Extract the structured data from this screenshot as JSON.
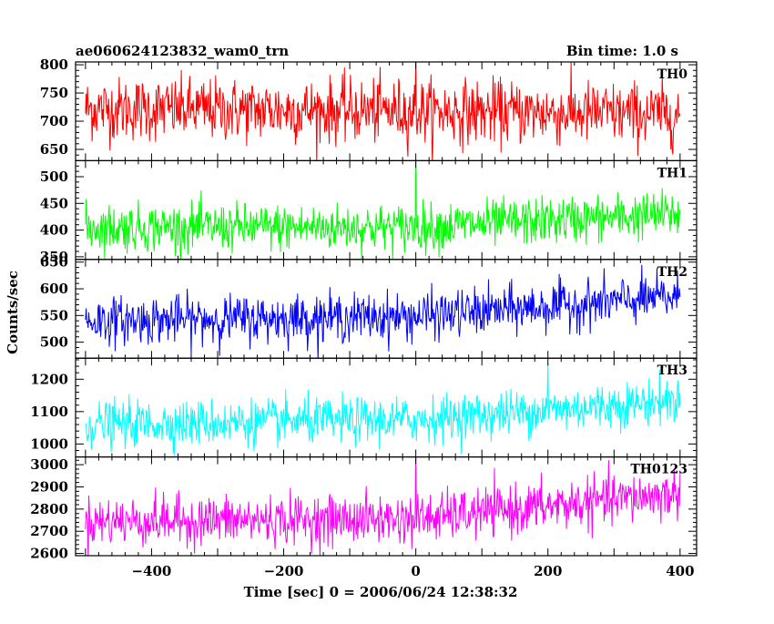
{
  "header": {
    "left": "ae060624123832_wam0_trn",
    "right": "Bin time: 1.0 s"
  },
  "chart_data": {
    "type": "line",
    "title": "ae060624123832_wam0_trn",
    "subtitle": "Bin time: 1.0 s",
    "xlabel": "Time [sec] 0 = 2006/06/24 12:38:32",
    "ylabel": "Counts/sec",
    "xlim": [
      -515,
      425
    ],
    "x_ticks": [
      -400,
      -200,
      0,
      200,
      400
    ],
    "x_tick_labels": [
      "−400",
      "−200",
      "0",
      "200",
      "400"
    ],
    "x_range_data": [
      -500,
      400
    ],
    "bin_time": 1.0,
    "grid": false,
    "panels": [
      {
        "name": "TH0",
        "color": "#ff0000",
        "ylim": [
          630,
          805
        ],
        "y_ticks": [
          650,
          700,
          750,
          800
        ],
        "trend": [
          {
            "x": -500,
            "y": 722
          },
          {
            "x": 0,
            "y": 718
          },
          {
            "x": 400,
            "y": 712
          }
        ],
        "noise_sd": 28,
        "spikes": [
          {
            "x": 0,
            "y": 810
          }
        ]
      },
      {
        "name": "TH1",
        "color": "#00ff00",
        "ylim": [
          345,
          530
        ],
        "y_ticks": [
          350,
          400,
          450,
          500
        ],
        "trend": [
          {
            "x": -500,
            "y": 405
          },
          {
            "x": 0,
            "y": 405
          },
          {
            "x": 400,
            "y": 430
          }
        ],
        "noise_sd": 22,
        "spikes": [
          {
            "x": 0,
            "y": 535
          }
        ]
      },
      {
        "name": "TH2",
        "color": "#0000ff",
        "ylim": [
          470,
          655
        ],
        "y_ticks": [
          500,
          550,
          600,
          650
        ],
        "trend": [
          {
            "x": -500,
            "y": 540
          },
          {
            "x": 0,
            "y": 548
          },
          {
            "x": 400,
            "y": 585
          }
        ],
        "noise_sd": 22,
        "spikes": []
      },
      {
        "name": "TH3",
        "color": "#00ffff",
        "ylim": [
          960,
          1265
        ],
        "y_ticks": [
          1000,
          1100,
          1200
        ],
        "trend": [
          {
            "x": -500,
            "y": 1060
          },
          {
            "x": 0,
            "y": 1075
          },
          {
            "x": 400,
            "y": 1135
          }
        ],
        "noise_sd": 35,
        "spikes": [
          {
            "x": 200,
            "y": 1250
          }
        ]
      },
      {
        "name": "TH0123",
        "color": "#ff00ff",
        "ylim": [
          2590,
          3035
        ],
        "y_ticks": [
          2600,
          2700,
          2800,
          2900,
          3000
        ],
        "trend": [
          {
            "x": -500,
            "y": 2745
          },
          {
            "x": 0,
            "y": 2755
          },
          {
            "x": 400,
            "y": 2870
          }
        ],
        "noise_sd": 55,
        "spikes": [
          {
            "x": 0,
            "y": 3040
          }
        ]
      }
    ]
  }
}
